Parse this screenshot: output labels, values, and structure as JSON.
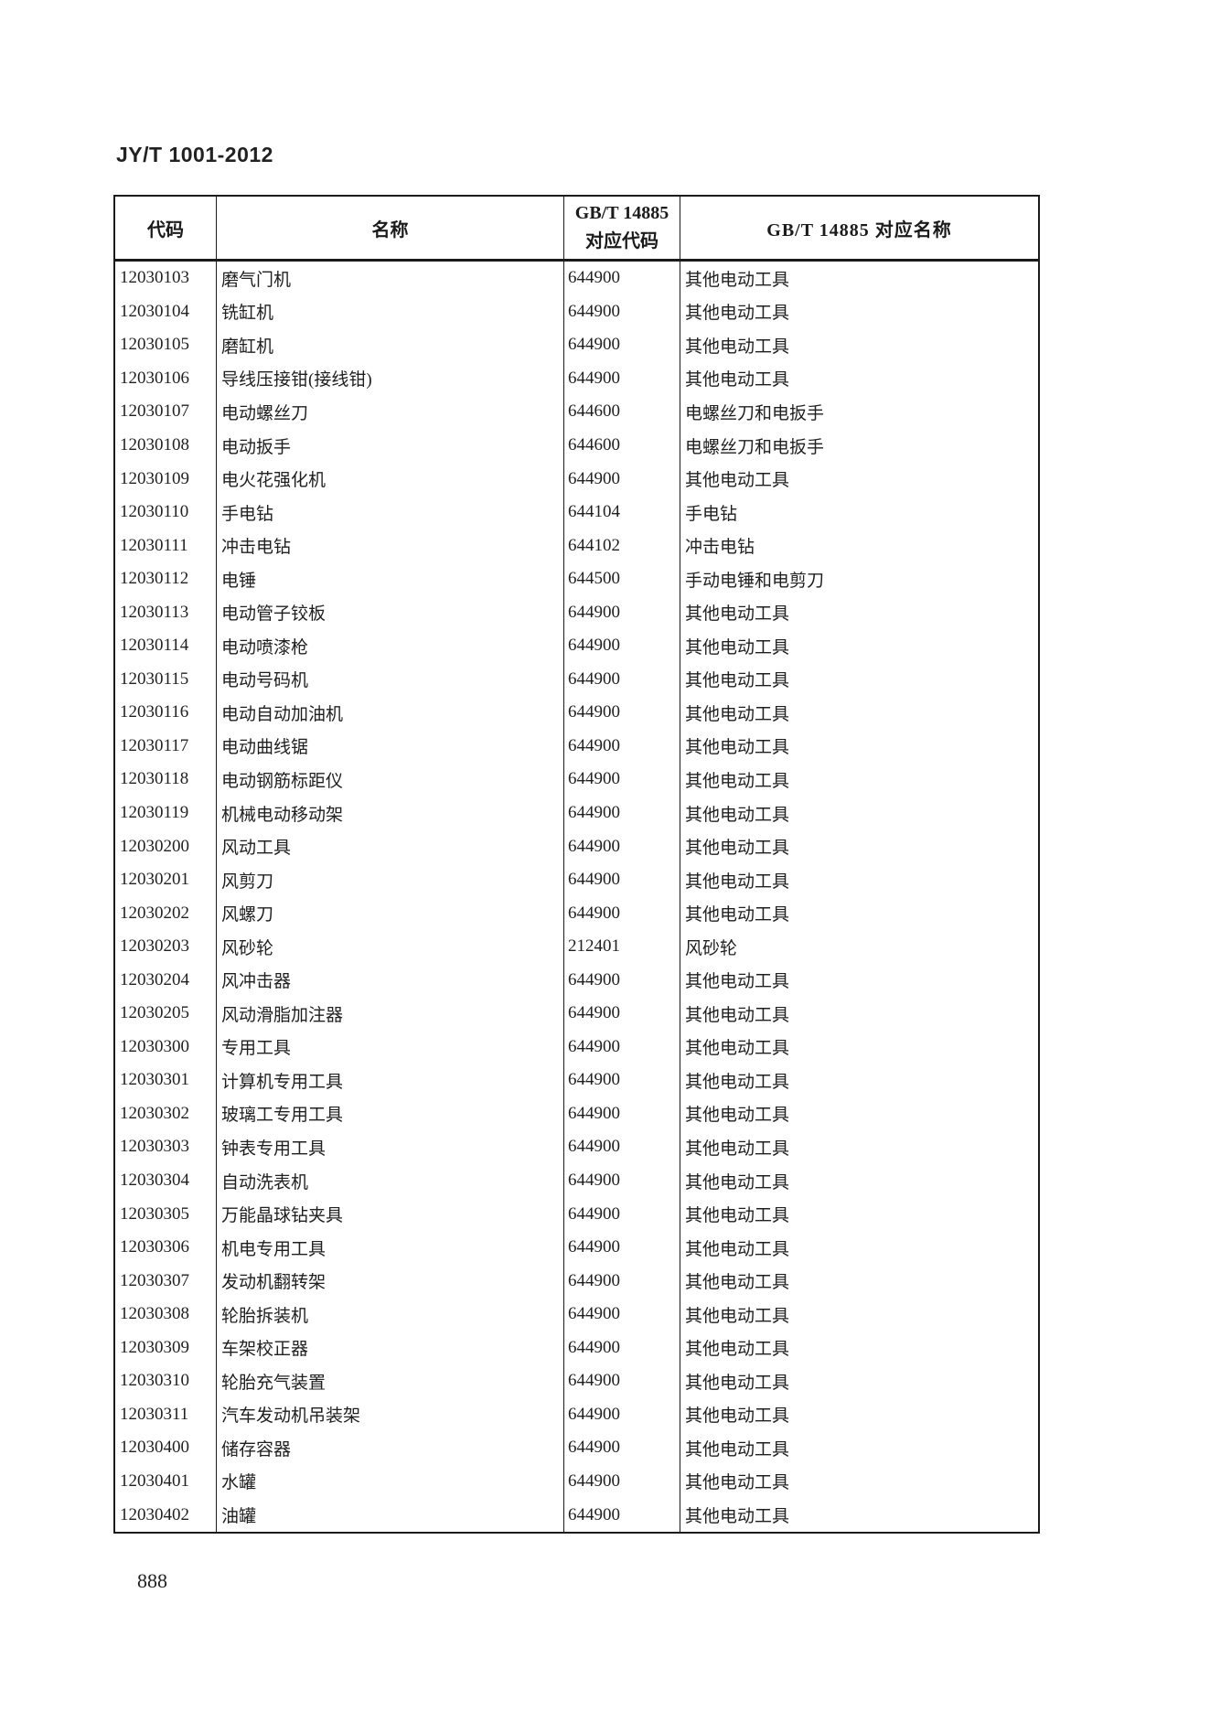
{
  "page": {
    "standard_code": "JY/T 1001-2012",
    "page_number": "888"
  },
  "table": {
    "headers": {
      "col1": "代码",
      "col2": "名称",
      "col3_line1": "GB/T 14885",
      "col3_line2": "对应代码",
      "col4": "GB/T 14885 对应名称"
    },
    "rows": [
      [
        "12030103",
        "磨气门机",
        "644900",
        "其他电动工具"
      ],
      [
        "12030104",
        "铣缸机",
        "644900",
        "其他电动工具"
      ],
      [
        "12030105",
        "磨缸机",
        "644900",
        "其他电动工具"
      ],
      [
        "12030106",
        "导线压接钳(接线钳)",
        "644900",
        "其他电动工具"
      ],
      [
        "12030107",
        "电动螺丝刀",
        "644600",
        "电螺丝刀和电扳手"
      ],
      [
        "12030108",
        "电动扳手",
        "644600",
        "电螺丝刀和电扳手"
      ],
      [
        "12030109",
        "电火花强化机",
        "644900",
        "其他电动工具"
      ],
      [
        "12030110",
        "手电钻",
        "644104",
        "手电钻"
      ],
      [
        "12030111",
        "冲击电钻",
        "644102",
        "冲击电钻"
      ],
      [
        "12030112",
        "电锤",
        "644500",
        "手动电锤和电剪刀"
      ],
      [
        "12030113",
        "电动管子铰板",
        "644900",
        "其他电动工具"
      ],
      [
        "12030114",
        "电动喷漆枪",
        "644900",
        "其他电动工具"
      ],
      [
        "12030115",
        "电动号码机",
        "644900",
        "其他电动工具"
      ],
      [
        "12030116",
        "电动自动加油机",
        "644900",
        "其他电动工具"
      ],
      [
        "12030117",
        "电动曲线锯",
        "644900",
        "其他电动工具"
      ],
      [
        "12030118",
        "电动钢筋标距仪",
        "644900",
        "其他电动工具"
      ],
      [
        "12030119",
        "机械电动移动架",
        "644900",
        "其他电动工具"
      ],
      [
        "12030200",
        "风动工具",
        "644900",
        "其他电动工具"
      ],
      [
        "12030201",
        "风剪刀",
        "644900",
        "其他电动工具"
      ],
      [
        "12030202",
        "风螺刀",
        "644900",
        "其他电动工具"
      ],
      [
        "12030203",
        "风砂轮",
        "212401",
        "风砂轮"
      ],
      [
        "12030204",
        "风冲击器",
        "644900",
        "其他电动工具"
      ],
      [
        "12030205",
        "风动滑脂加注器",
        "644900",
        "其他电动工具"
      ],
      [
        "12030300",
        "专用工具",
        "644900",
        "其他电动工具"
      ],
      [
        "12030301",
        "计算机专用工具",
        "644900",
        "其他电动工具"
      ],
      [
        "12030302",
        "玻璃工专用工具",
        "644900",
        "其他电动工具"
      ],
      [
        "12030303",
        "钟表专用工具",
        "644900",
        "其他电动工具"
      ],
      [
        "12030304",
        "自动洗表机",
        "644900",
        "其他电动工具"
      ],
      [
        "12030305",
        "万能晶球钻夹具",
        "644900",
        "其他电动工具"
      ],
      [
        "12030306",
        "机电专用工具",
        "644900",
        "其他电动工具"
      ],
      [
        "12030307",
        "发动机翻转架",
        "644900",
        "其他电动工具"
      ],
      [
        "12030308",
        "轮胎拆装机",
        "644900",
        "其他电动工具"
      ],
      [
        "12030309",
        "车架校正器",
        "644900",
        "其他电动工具"
      ],
      [
        "12030310",
        "轮胎充气装置",
        "644900",
        "其他电动工具"
      ],
      [
        "12030311",
        "汽车发动机吊装架",
        "644900",
        "其他电动工具"
      ],
      [
        "12030400",
        "储存容器",
        "644900",
        "其他电动工具"
      ],
      [
        "12030401",
        "水罐",
        "644900",
        "其他电动工具"
      ],
      [
        "12030402",
        "油罐",
        "644900",
        "其他电动工具"
      ]
    ]
  }
}
